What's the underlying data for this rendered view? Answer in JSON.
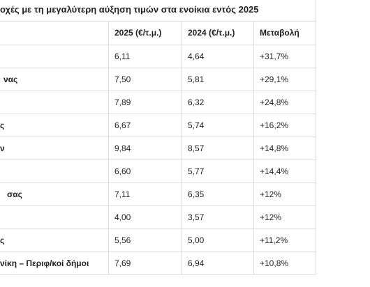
{
  "header": {
    "title": "οχές με τη μεγαλύτερη αύξηση τιμών στα ενοίκια εντός 2025"
  },
  "table": {
    "columns": [
      "2025 (€/τ.μ.)",
      "2024 (€/τ.μ.)",
      "Μεταβολή"
    ],
    "rows": [
      [
        null,
        "6,11",
        "4,64",
        "+31,7%"
      ],
      [
        "νας",
        "7,50",
        "5,81",
        "+29,1%"
      ],
      [
        null,
        "7,89",
        "6,32",
        "+24,8%"
      ],
      [
        "ς",
        "6,67",
        "5,74",
        "+16,2%"
      ],
      [
        "ν",
        "9,84",
        "8,57",
        "+14,8%"
      ],
      [
        null,
        "6,60",
        "5,77",
        "+14,4%"
      ],
      [
        "σας",
        "7,11",
        "6,35",
        "+12%"
      ],
      [
        null,
        "4,00",
        "3,57",
        "+12%"
      ],
      [
        "ς",
        "5,56",
        "5,00",
        "+11,2%"
      ],
      [
        "νίκη – Περιφ/κοί δήμοι",
        "7,69",
        "6,94",
        "+10,8%"
      ]
    ]
  }
}
